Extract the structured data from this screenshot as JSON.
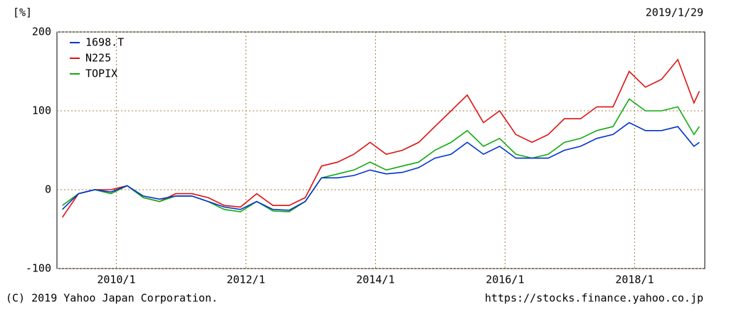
{
  "chart_data": {
    "type": "line",
    "y_label": "[%]",
    "date": "2019/1/29",
    "copyright": "(C) 2019 Yahoo Japan Corporation.",
    "source": "https://stocks.finance.yahoo.co.jp",
    "x": [
      "2009/3",
      "2009/6",
      "2009/9",
      "2009/12",
      "2010/3",
      "2010/6",
      "2010/9",
      "2010/12",
      "2011/3",
      "2011/6",
      "2011/9",
      "2011/12",
      "2012/3",
      "2012/6",
      "2012/9",
      "2012/12",
      "2013/3",
      "2013/6",
      "2013/9",
      "2013/12",
      "2014/3",
      "2014/6",
      "2014/9",
      "2014/12",
      "2015/3",
      "2015/6",
      "2015/9",
      "2015/12",
      "2016/3",
      "2016/6",
      "2016/9",
      "2016/12",
      "2017/3",
      "2017/6",
      "2017/9",
      "2017/12",
      "2018/3",
      "2018/6",
      "2018/9",
      "2018/12",
      "2019/1"
    ],
    "xlim": [
      "2009/2",
      "2019/2"
    ],
    "xticks": [
      "2010/1",
      "2012/1",
      "2014/1",
      "2016/1",
      "2018/1"
    ],
    "ylim": [
      -100,
      200
    ],
    "yticks": [
      -100,
      0,
      100,
      200
    ],
    "grid": true,
    "legend": "upper left",
    "series": [
      {
        "name": "1698.T",
        "color": "#0033cc",
        "values": [
          -25,
          -5,
          0,
          -3,
          5,
          -8,
          -12,
          -8,
          -8,
          -15,
          -22,
          -25,
          -15,
          -25,
          -26,
          -15,
          15,
          15,
          18,
          25,
          20,
          22,
          28,
          40,
          45,
          60,
          45,
          55,
          40,
          40,
          40,
          50,
          55,
          65,
          70,
          85,
          75,
          75,
          80,
          55,
          60
        ]
      },
      {
        "name": "N225",
        "color": "#dd1111",
        "values": [
          -35,
          -5,
          0,
          0,
          5,
          -10,
          -15,
          -5,
          -5,
          -10,
          -20,
          -22,
          -5,
          -20,
          -20,
          -10,
          30,
          35,
          45,
          60,
          45,
          50,
          60,
          80,
          100,
          120,
          85,
          100,
          70,
          60,
          70,
          90,
          90,
          105,
          105,
          150,
          130,
          140,
          165,
          110,
          125
        ]
      },
      {
        "name": "TOPIX",
        "color": "#11aa11",
        "values": [
          -20,
          -5,
          0,
          -5,
          5,
          -10,
          -15,
          -8,
          -8,
          -15,
          -25,
          -28,
          -15,
          -27,
          -28,
          -15,
          15,
          20,
          25,
          35,
          25,
          30,
          35,
          50,
          60,
          75,
          55,
          65,
          45,
          40,
          45,
          60,
          65,
          75,
          80,
          115,
          100,
          100,
          105,
          70,
          80
        ]
      }
    ]
  }
}
